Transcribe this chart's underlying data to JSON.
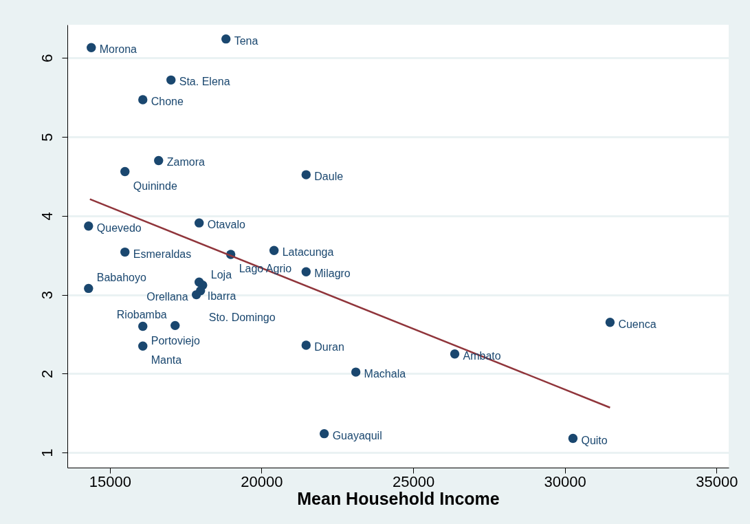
{
  "chart_data": {
    "type": "scatter",
    "xlabel": "Mean Household Income",
    "xlim": [
      13600,
      35400
    ],
    "ylim": [
      0.81,
      6.42
    ],
    "xticks": [
      15000,
      20000,
      25000,
      30000,
      35000
    ],
    "yticks": [
      1,
      2,
      3,
      4,
      5,
      6
    ],
    "grid": "y",
    "series": [
      {
        "marker": "circle",
        "color": "#1a476f",
        "x": [
          14388,
          18828,
          17016,
          16087,
          16608,
          15498,
          21470,
          17944,
          14298,
          15498,
          18986,
          20413,
          21470,
          17944,
          18060,
          17990,
          17853,
          14298,
          16087,
          17152,
          16087,
          21470,
          31489,
          26370,
          23109,
          22067,
          30266
        ],
        "values": [
          6.13,
          6.24,
          5.72,
          5.47,
          4.7,
          4.56,
          4.52,
          3.91,
          3.87,
          3.54,
          3.51,
          3.56,
          3.29,
          3.16,
          3.12,
          3.05,
          3.0,
          3.08,
          2.6,
          2.61,
          2.35,
          2.36,
          2.65,
          2.25,
          2.02,
          1.24,
          1.18
        ]
      },
      {
        "type": "line",
        "color": "#90353b",
        "x": [
          14343,
          31489
        ],
        "values": [
          4.21,
          1.57
        ]
      }
    ],
    "annotations": [
      {
        "text": "Morona",
        "x": 14388,
        "y": 6.13
      },
      {
        "text": "Tena",
        "x": 18828,
        "y": 6.24
      },
      {
        "text": "Sta. Elena",
        "x": 17016,
        "y": 5.72
      },
      {
        "text": "Chone",
        "x": 16087,
        "y": 5.47
      },
      {
        "text": "Zamora",
        "x": 16608,
        "y": 4.7
      },
      {
        "text": "Quininde",
        "x": 15498,
        "y": 4.56
      },
      {
        "text": "Daule",
        "x": 21470,
        "y": 4.52
      },
      {
        "text": "Otavalo",
        "x": 17944,
        "y": 3.91
      },
      {
        "text": "Quevedo",
        "x": 14298,
        "y": 3.87
      },
      {
        "text": "Esmeraldas",
        "x": 15498,
        "y": 3.54
      },
      {
        "text": "Lago Agrio",
        "x": 18986,
        "y": 3.51
      },
      {
        "text": "Latacunga",
        "x": 20413,
        "y": 3.56
      },
      {
        "text": "Milagro",
        "x": 21470,
        "y": 3.29
      },
      {
        "text": "Ibarra",
        "x": 17944,
        "y": 3.16
      },
      {
        "text": "Loja",
        "x": 18060,
        "y": 3.12
      },
      {
        "text": "Sto. Domingo",
        "x": 17990,
        "y": 3.05
      },
      {
        "text": "Orellana",
        "x": 17853,
        "y": 3.0
      },
      {
        "text": "Babahoyo",
        "x": 14298,
        "y": 3.08
      },
      {
        "text": "Portoviejo",
        "x": 16087,
        "y": 2.6
      },
      {
        "text": "Riobamba",
        "x": 17152,
        "y": 2.61
      },
      {
        "text": "Manta",
        "x": 16087,
        "y": 2.35
      },
      {
        "text": "Duran",
        "x": 21470,
        "y": 2.36
      },
      {
        "text": "Cuenca",
        "x": 31489,
        "y": 2.65
      },
      {
        "text": "Ambato",
        "x": 26370,
        "y": 2.25
      },
      {
        "text": "Machala",
        "x": 23109,
        "y": 2.02
      },
      {
        "text": "Guayaquil",
        "x": 22067,
        "y": 1.24
      },
      {
        "text": "Quito",
        "x": 30266,
        "y": 1.18
      }
    ]
  }
}
